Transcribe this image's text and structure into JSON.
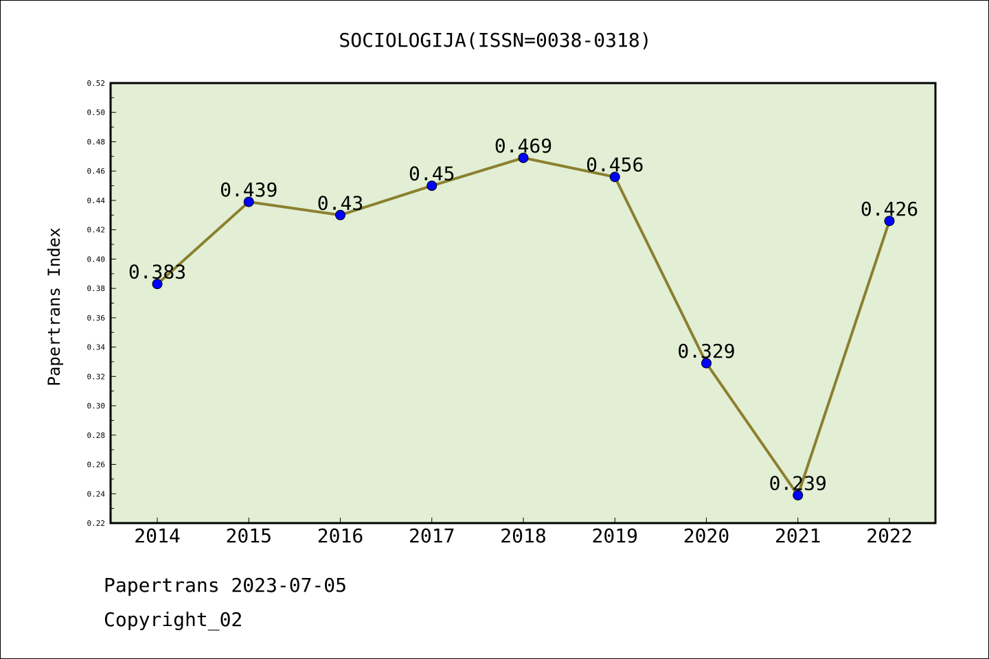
{
  "chart_data": {
    "type": "line",
    "title": "SOCIOLOGIJA(ISSN=0038-0318)",
    "xlabel": "",
    "ylabel": "Papertrans Index",
    "categories": [
      "2014",
      "2015",
      "2016",
      "2017",
      "2018",
      "2019",
      "2020",
      "2021",
      "2022"
    ],
    "series": [
      {
        "values": [
          0.383,
          0.439,
          0.43,
          0.45,
          0.469,
          0.456,
          0.329,
          0.239,
          0.426
        ],
        "data_labels": [
          "0.383",
          "0.439",
          "0.43",
          "0.45",
          "0.469",
          "0.456",
          "0.329",
          "0.239",
          "0.426"
        ],
        "line_color": "#8b8030",
        "marker_color": "#0000ff"
      }
    ],
    "ylim": [
      0.22,
      0.52
    ],
    "yticks": [
      "0.22",
      "0.24",
      "0.26",
      "0.28",
      "0.30",
      "0.32",
      "0.34",
      "0.36",
      "0.38",
      "0.40",
      "0.42",
      "0.44",
      "0.46",
      "0.48",
      "0.50",
      "0.52"
    ],
    "grid": false,
    "legend": "none",
    "plot_background": "#e2efd4"
  },
  "footer": {
    "source": "Papertrans 2023-07-05",
    "copyright": "Copyright_02"
  }
}
